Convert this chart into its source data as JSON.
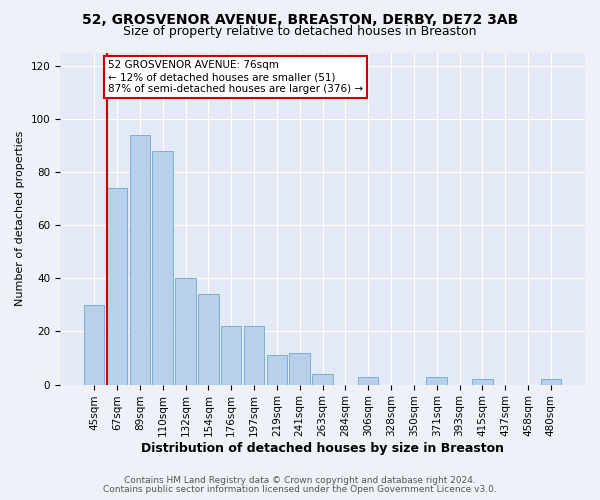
{
  "title1": "52, GROSVENOR AVENUE, BREASTON, DERBY, DE72 3AB",
  "title2": "Size of property relative to detached houses in Breaston",
  "xlabel": "Distribution of detached houses by size in Breaston",
  "ylabel": "Number of detached properties",
  "categories": [
    "45sqm",
    "67sqm",
    "89sqm",
    "110sqm",
    "132sqm",
    "154sqm",
    "176sqm",
    "197sqm",
    "219sqm",
    "241sqm",
    "263sqm",
    "284sqm",
    "306sqm",
    "328sqm",
    "350sqm",
    "371sqm",
    "393sqm",
    "415sqm",
    "437sqm",
    "458sqm",
    "480sqm"
  ],
  "values": [
    30,
    74,
    94,
    88,
    40,
    34,
    22,
    22,
    11,
    12,
    4,
    0,
    3,
    0,
    0,
    3,
    0,
    2,
    0,
    0,
    2
  ],
  "bar_color": "#b8d0ea",
  "bar_edge_color": "#7aafd4",
  "annotation_line1": "52 GROSVENOR AVENUE: 76sqm",
  "annotation_line2": "← 12% of detached houses are smaller (51)",
  "annotation_line3": "87% of semi-detached houses are larger (376) →",
  "annotation_box_color": "#ffffff",
  "annotation_box_edge": "#cc0000",
  "property_line_color": "#cc0000",
  "property_line_x": 0.545,
  "ylim": [
    0,
    125
  ],
  "yticks": [
    0,
    20,
    40,
    60,
    80,
    100,
    120
  ],
  "footer1": "Contains HM Land Registry data © Crown copyright and database right 2024.",
  "footer2": "Contains public sector information licensed under the Open Government Licence v3.0.",
  "bg_color": "#eef2f8",
  "plot_bg_color": "#e4eaf5",
  "grid_color": "#ffffff",
  "title1_fontsize": 10,
  "title2_fontsize": 9,
  "xlabel_fontsize": 9,
  "ylabel_fontsize": 8,
  "tick_fontsize": 7.5,
  "annot_fontsize": 7.5,
  "footer_fontsize": 6.5
}
